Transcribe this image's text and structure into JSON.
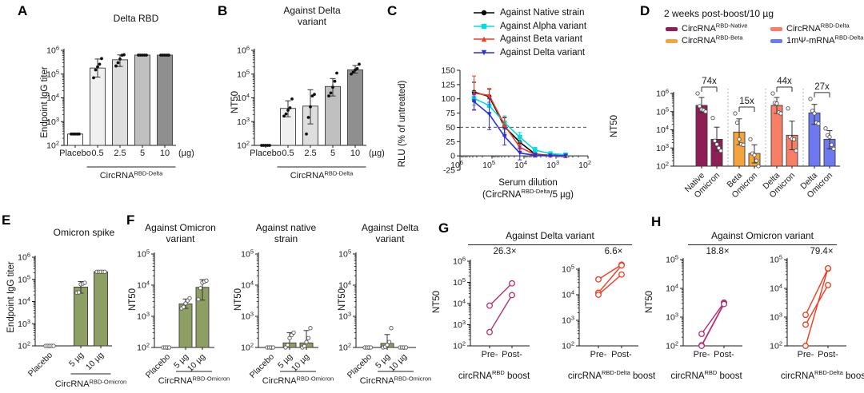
{
  "panels": {
    "A": {
      "letter": "A",
      "title": "Delta RBD",
      "ylabel": "Endpoint IgG titer"
    },
    "B": {
      "letter": "B",
      "title_line1": "Against Delta",
      "title_line2": "variant",
      "ylabel": "NT50"
    },
    "C": {
      "letter": "C",
      "ylabel": "RLU (% of untreated)",
      "xlabel": "Serum dilution",
      "xsub": {
        "base": "(CircRNA",
        "sup": "RBD-Delta",
        "suffix": "/5 µg)"
      }
    },
    "D": {
      "letter": "D",
      "title": "2 weeks post-boost/10 µg",
      "ylabel": "NT50",
      "legend": [
        {
          "base": "CircRNA",
          "sup": "RBD-Native",
          "color": "#8e1e55"
        },
        {
          "base": "CircRNA",
          "sup": "RBD-Beta",
          "color": "#f5a33c"
        },
        {
          "base": "CircRNA",
          "sup": "RBD-Delta",
          "color": "#f87e66"
        },
        {
          "base": "1mΨ-mRNA",
          "sup": "RBD-Delta",
          "color": "#6c79f0"
        }
      ]
    },
    "E": {
      "letter": "E",
      "title": "Omicron spike",
      "ylabel": "Endpoint IgG titer"
    },
    "F": {
      "letter": "F",
      "ylabel": "NT50",
      "titles": [
        {
          "l1": "Against Omicron",
          "l2": "variant"
        },
        {
          "l1": "Against native",
          "l2": "strain"
        },
        {
          "l1": "Against Delta",
          "l2": "variant"
        }
      ]
    },
    "G": {
      "letter": "G",
      "title": "Against Delta variant",
      "footers": [
        {
          "base": "circRNA",
          "sup": "RBD",
          "suffix": " boost"
        },
        {
          "base": "circRNA",
          "sup": "RBD-Delta",
          "suffix": " boost"
        }
      ]
    },
    "H": {
      "letter": "H",
      "title": "Against Omicron variant",
      "footers": [
        {
          "base": "circRNA",
          "sup": "RBD",
          "suffix": " boost"
        },
        {
          "base": "circRNA",
          "sup": "RBD-Delta",
          "suffix": " boost"
        }
      ]
    }
  },
  "chart_data": [
    {
      "id": "A",
      "type": "bar",
      "title": "Delta RBD",
      "ylabel": "Endpoint IgG titer",
      "ylog": [
        2,
        6
      ],
      "categories": [
        "Placebo",
        "0.5",
        "2.5",
        "5",
        "10"
      ],
      "unit": "(µg)",
      "values": [
        300,
        180000,
        400000,
        630000,
        630000
      ],
      "colors": [
        "#ffffff",
        "#f0f0f0",
        "#dedede",
        "#c0c0c0",
        "#8f8f8f"
      ],
      "err_lo": [
        null,
        75000,
        210000,
        null,
        null
      ],
      "err_hi": [
        null,
        430000,
        640000,
        null,
        null
      ],
      "points": [
        [
          300,
          300,
          300,
          300,
          300
        ],
        [
          70000,
          150000,
          200000,
          260000,
          450000
        ],
        [
          220000,
          300000,
          430000,
          620000,
          650000
        ],
        [
          630000,
          630000,
          630000,
          630000,
          630000
        ],
        [
          630000,
          630000,
          630000,
          630000,
          630000
        ]
      ],
      "point_style": "filled",
      "group": {
        "from": 1,
        "to": 4,
        "base": "CircRNA",
        "sup": "RBD-Delta"
      }
    },
    {
      "id": "B",
      "type": "bar",
      "title": "Against Delta variant",
      "ylabel": "NT50",
      "ylog": [
        2,
        6
      ],
      "categories": [
        "Placebo",
        "0.5",
        "2.5",
        "5",
        "10"
      ],
      "unit": "(µg)",
      "values": [
        100,
        3600,
        4500,
        30000,
        150000
      ],
      "colors": [
        "#ffffff",
        "#f0f0f0",
        "#dedede",
        "#c0c0c0",
        "#8f8f8f"
      ],
      "err_lo": [
        null,
        1600,
        800,
        12000,
        110000
      ],
      "err_hi": [
        null,
        7500,
        22000,
        65000,
        230000
      ],
      "points": [
        [
          100,
          100,
          100,
          100,
          100
        ],
        [
          1700,
          2100,
          3000,
          3800,
          9000
        ],
        [
          300,
          1500,
          4200,
          12000,
          14000
        ],
        [
          12000,
          16000,
          28000,
          50000,
          110000
        ],
        [
          100000,
          120000,
          150000,
          170000,
          260000
        ]
      ],
      "point_style": "filled",
      "group": {
        "from": 1,
        "to": 4,
        "base": "CircRNA",
        "sup": "RBD-Delta"
      }
    },
    {
      "id": "C",
      "type": "line",
      "ylabel": "RLU (% of untreated)",
      "xlabel": "Serum dilution",
      "xlog": [
        6,
        2
      ],
      "ylim": [
        -25,
        150
      ],
      "ytick_step": 25,
      "dashed_y": 50,
      "x": [
        364500,
        121500,
        40500,
        13500,
        4500,
        1500,
        500
      ],
      "series": [
        {
          "name": "Against Native strain",
          "color": "#000000",
          "marker": "circle",
          "values": [
            112,
            104,
            51,
            24,
            3,
            1,
            1
          ],
          "err": [
            17,
            13,
            16,
            10,
            4,
            2,
            1
          ]
        },
        {
          "name": "Against Alpha variant",
          "color": "#00dde0",
          "marker": "square",
          "values": [
            101,
            88,
            58,
            33,
            10,
            4,
            2
          ],
          "err": [
            12,
            15,
            12,
            8,
            5,
            3,
            2
          ]
        },
        {
          "name": "Against Beta variant",
          "color": "#f03a21",
          "marker": "triangle",
          "values": [
            110,
            106,
            54,
            15,
            2,
            1,
            0
          ],
          "err": [
            30,
            12,
            14,
            8,
            3,
            1,
            1
          ]
        },
        {
          "name": "Against Delta variant",
          "color": "#2a2fe0",
          "marker": "triangle-down",
          "values": [
            95,
            73,
            34,
            5,
            1,
            0,
            0
          ],
          "err": [
            14,
            27,
            15,
            12,
            3,
            1,
            1
          ]
        }
      ]
    },
    {
      "id": "D",
      "type": "bar",
      "title": "2 weeks post-boost/10 µg",
      "ylabel": "NT50",
      "ylog": [
        2,
        6
      ],
      "categories": [
        "Native",
        "Omicron",
        "Beta",
        "Omicron",
        "Delta",
        "Omicron",
        "Delta",
        "Omicron"
      ],
      "values": [
        220000,
        3000,
        7500,
        500,
        220000,
        5000,
        85000,
        3000
      ],
      "colors": [
        "#8e1e55",
        "#8e1e55",
        "#f5a33c",
        "#f5a33c",
        "#f87e66",
        "#f87e66",
        "#6c79f0",
        "#6c79f0"
      ],
      "err_lo": [
        90000,
        700,
        1500,
        150,
        80000,
        800,
        20000,
        900
      ],
      "err_hi": [
        600000,
        14000,
        40000,
        1500,
        600000,
        30000,
        250000,
        9000
      ],
      "points": [
        [
          1000000,
          200000,
          130000,
          120000,
          100000
        ],
        [
          45000,
          2500,
          1600,
          1000,
          700
        ],
        [
          80000,
          25000,
          3000,
          1600,
          1500
        ],
        [
          3000,
          500,
          400,
          200,
          100
        ],
        [
          1000000,
          300000,
          280000,
          90000,
          80000
        ],
        [
          150000,
          4000,
          3200,
          3000,
          700
        ],
        [
          500000,
          110000,
          80000,
          25000,
          22000
        ],
        [
          12000,
          5000,
          4000,
          1500,
          900
        ]
      ],
      "point_style": "open",
      "rot": 45,
      "separators": [
        2,
        4,
        6
      ],
      "folds": [
        {
          "label": "74x",
          "a": 0,
          "b": 1
        },
        {
          "label": "15x",
          "a": 2,
          "b": 3
        },
        {
          "label": "44x",
          "a": 4,
          "b": 5
        },
        {
          "label": "27x",
          "a": 6,
          "b": 7
        }
      ]
    },
    {
      "id": "E",
      "type": "bar",
      "title": "Omicron spike",
      "ylabel": "Endpoint IgG titer",
      "ylog": [
        2,
        6
      ],
      "categories": [
        "Placebo",
        "5 µg",
        "10 µg"
      ],
      "values": [
        100,
        45000,
        220000
      ],
      "colors": [
        "#8d9f62",
        "#8d9f62",
        "#8d9f62"
      ],
      "err_lo": [
        null,
        24000,
        null
      ],
      "err_hi": [
        null,
        80000,
        null
      ],
      "points": [
        [
          100,
          100,
          100,
          100,
          100
        ],
        [
          25000,
          26000,
          60000,
          65000,
          70000
        ],
        [
          220000,
          220000,
          220000,
          220000,
          220000
        ]
      ],
      "point_style": "open",
      "rot": 45,
      "group": {
        "from": 1,
        "to": 2,
        "base": "CircRNA",
        "sup": "RBD-Omicron"
      }
    },
    {
      "id": "F1",
      "type": "bar",
      "title": "Against Omicron variant",
      "ylabel": "NT50",
      "ylog": [
        2,
        5
      ],
      "categories": [
        "Placebo",
        "5 µg",
        "10 µg"
      ],
      "values": [
        100,
        2500,
        8500
      ],
      "colors": [
        "#8d9f62",
        "#8d9f62",
        "#8d9f62"
      ],
      "err_lo": [
        null,
        1800,
        3300
      ],
      "err_hi": [
        null,
        3600,
        15000
      ],
      "points": [
        [
          100,
          100,
          100,
          100
        ],
        [
          1800,
          2000,
          2600,
          3200,
          3800
        ],
        [
          3500,
          8000,
          12000,
          13000,
          14000
        ]
      ],
      "point_style": "open",
      "rot": 45,
      "group": {
        "from": 1,
        "to": 2,
        "base": "CircRNA",
        "sup": "RBD-Omicron"
      }
    },
    {
      "id": "F2",
      "type": "bar",
      "title": "Against native strain",
      "ylabel": "NT50",
      "ylog": [
        2,
        5
      ],
      "categories": [
        "Placebo",
        "5 µg",
        "10 µg"
      ],
      "values": [
        100,
        140,
        140
      ],
      "colors": [
        "#8d9f62",
        "#8d9f62",
        "#8d9f62"
      ],
      "err_lo": [
        null,
        null,
        null
      ],
      "err_hi": [
        null,
        300,
        350
      ],
      "points": [
        [
          100,
          100,
          100,
          100
        ],
        [
          100,
          120,
          200,
          250,
          300
        ],
        [
          100,
          110,
          150,
          200,
          420
        ]
      ],
      "point_style": "open",
      "rot": 45,
      "group": {
        "from": 1,
        "to": 2,
        "base": "CircRNA",
        "sup": "RBD-Omicron"
      }
    },
    {
      "id": "F3",
      "type": "bar",
      "title": "Against Delta variant",
      "ylabel": "NT50",
      "ylog": [
        2,
        5
      ],
      "categories": [
        "Placebo",
        "5 µg",
        "10 µg"
      ],
      "values": [
        100,
        135,
        102
      ],
      "colors": [
        "#8d9f62",
        "#8d9f62",
        "#8d9f62"
      ],
      "err_lo": [
        null,
        null,
        null
      ],
      "err_hi": [
        null,
        260,
        null
      ],
      "points": [
        [
          100,
          100,
          100,
          100
        ],
        [
          100,
          105,
          120,
          150,
          420
        ],
        [
          100,
          100,
          100,
          100
        ]
      ],
      "point_style": "open",
      "rot": 45,
      "group": {
        "from": 1,
        "to": 2,
        "base": "CircRNA",
        "sup": "RBD-Omicron"
      }
    },
    {
      "id": "G1",
      "type": "paired",
      "ylabel": "NT50",
      "ylog": [
        2,
        6
      ],
      "fold": "26.3×",
      "categories": [
        "Pre-",
        "Post-"
      ],
      "color": "#b42e72",
      "lines": [
        [
          8000,
          90000
        ],
        [
          450,
          25000
        ]
      ]
    },
    {
      "id": "G2",
      "type": "paired",
      "ylabel": "NT50",
      "ylog": [
        2,
        5
      ],
      "fold": "6.6×",
      "categories": [
        "Pre-",
        "Post-"
      ],
      "color": "#f23a1e",
      "lines": [
        [
          40000,
          150000
        ],
        [
          12000,
          140000
        ],
        [
          10000,
          62000
        ]
      ]
    },
    {
      "id": "H1",
      "type": "paired",
      "ylabel": "NT50",
      "ylog": [
        2,
        5
      ],
      "fold": "18.8×",
      "categories": [
        "Pre-",
        "Post-"
      ],
      "color": "#b42e72",
      "lines": [
        [
          260,
          3200
        ],
        [
          105,
          3000
        ],
        [
          100,
          2850
        ]
      ]
    },
    {
      "id": "H2",
      "type": "paired",
      "ylabel": "NT50",
      "ylog": [
        2,
        5
      ],
      "fold": "79.4×",
      "categories": [
        "Pre-",
        "Post-"
      ],
      "color": "#f23a1e",
      "lines": [
        [
          1200,
          48000
        ],
        [
          550,
          13000
        ],
        [
          100,
          50000
        ]
      ]
    }
  ]
}
